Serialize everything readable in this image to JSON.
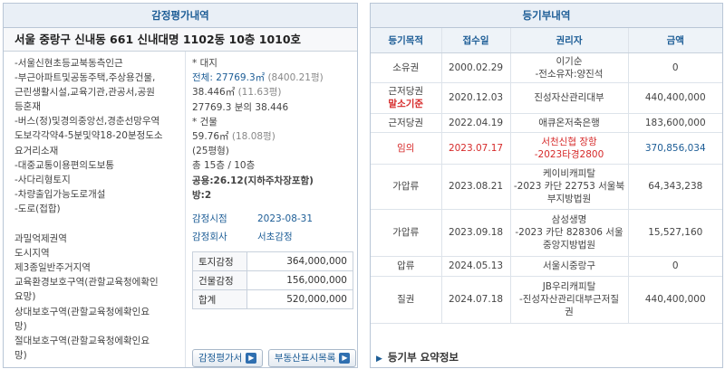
{
  "appraisal": {
    "title": "감정평가내역",
    "address": "서울 중랑구 신내동 661 신내대명 1102동 10층 1010호",
    "notes": [
      "-서울신현초등교북동측인근",
      "-부근아파트및공동주택,주상용건물,",
      "근린생활시설,교육기관,관공서,공원",
      "등혼재",
      "-버스(정)및경의중앙선,경춘선망우역",
      "도보각각약4-5분및약18-20분정도소",
      "요거리소재",
      "-대중교통이용편의도보통",
      "-사다리형토지",
      "-차량출입가능도로개설",
      "-도로(접합)"
    ],
    "zoning": [
      "과밀억제권역",
      "도시지역",
      "제3종일반주거지역",
      "교육환경보호구역(관할교육청에확인",
      "요망)",
      "상대보호구역(관할교육청에확인요",
      "망)",
      "절대보호구역(관할교육청에확인요",
      "망)"
    ],
    "land_label": "* 대지",
    "land_total_prefix": "전체: ",
    "land_total": "27769.3㎡",
    "land_total_pyeong": " (8400.21평)",
    "land_share": "38.446㎡",
    "land_share_pyeong": " (11.63평)",
    "land_ratio": "27769.3 분의 38.446",
    "building_label": "* 건물",
    "building_area": "59.76㎡",
    "building_pyeong": " (18.08평)",
    "building_type": "(25평형)",
    "floors": "총 15층 / 10층",
    "common_area": "공용:26.12(지하주차장포함)",
    "rooms": "방:2",
    "appraisal_date_label": "감정시점",
    "appraisal_date": "2023-08-31",
    "appraiser_label": "감정회사",
    "appraiser": "서초감정",
    "amounts": [
      {
        "label": "토지감정",
        "value": "364,000,000"
      },
      {
        "label": "건물감정",
        "value": "156,000,000"
      },
      {
        "label": "합계",
        "value": "520,000,000"
      }
    ],
    "buttons": {
      "appraisal_doc": "감정평가서",
      "real_estate_list": "부동산표시목록"
    }
  },
  "registry": {
    "title": "등기부내역",
    "headers": [
      "등기목적",
      "접수일",
      "권리자",
      "금액"
    ],
    "rows": [
      {
        "purpose": "소유권",
        "date": "2000.02.29",
        "holder": [
          "이기순",
          "-전소유자:양진석"
        ],
        "amount": "0"
      },
      {
        "purpose": "근저당권",
        "purpose_note": "말소기준",
        "date": "2020.12.03",
        "holder": [
          "진성자산관리대부"
        ],
        "amount": "440,400,000"
      },
      {
        "purpose": "근저당권",
        "date": "2022.04.19",
        "holder": [
          "애큐온저축은행"
        ],
        "amount": "183,600,000"
      },
      {
        "purpose": "임의",
        "date": "2023.07.17",
        "holder": [
          "서천신협 장항",
          "-2023타경2800"
        ],
        "amount": "370,856,034"
      },
      {
        "purpose": "가압류",
        "date": "2023.08.21",
        "holder": [
          "케이비캐피탈",
          "-2023 카단 22753 서울북",
          "부지방법원"
        ],
        "amount": "64,343,238"
      },
      {
        "purpose": "가압류",
        "date": "2023.09.18",
        "holder": [
          "삼성생명",
          "-2023 카단 828306 서울",
          "중앙지방법원"
        ],
        "amount": "15,527,160"
      },
      {
        "purpose": "압류",
        "date": "2024.05.13",
        "holder": [
          "서울시중랑구"
        ],
        "amount": "0"
      },
      {
        "purpose": "질권",
        "date": "2024.07.18",
        "holder": [
          "JB우리캐피탈",
          "-진성자산관리대부근저질",
          "권"
        ],
        "amount": "440,400,000"
      }
    ],
    "summary_label": "등기부 요약정보"
  },
  "colors": {
    "accent": "#1d5d96",
    "highlight_red": "#d62a2a",
    "border": "#b9c6d6",
    "header_bg": "#e9eff6"
  }
}
